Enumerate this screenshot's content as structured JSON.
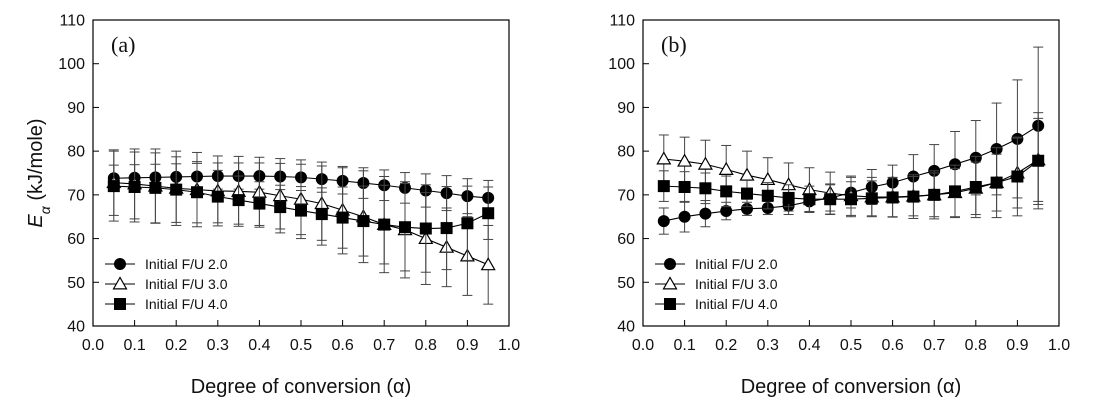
{
  "shared": {
    "ylabel_symbol": "E",
    "ylabel_sub": "α",
    "ylabel_unit": " (kJ/mole)"
  },
  "chart_data": [
    {
      "type": "line",
      "panel_label": "(a)",
      "xlabel": "Degree of conversion (α)",
      "ylabel": "Eα (kJ/mole)",
      "xlim": [
        0.0,
        1.0
      ],
      "ylim": [
        40,
        110
      ],
      "xticks": [
        "0.0",
        "0.1",
        "0.2",
        "0.3",
        "0.4",
        "0.5",
        "0.6",
        "0.7",
        "0.8",
        "0.9",
        "1.0"
      ],
      "yticks": [
        "40",
        "50",
        "60",
        "70",
        "80",
        "90",
        "100",
        "110"
      ],
      "grid": false,
      "legend_position": "bottom-left",
      "x": [
        0.05,
        0.1,
        0.15,
        0.2,
        0.25,
        0.3,
        0.35,
        0.4,
        0.45,
        0.5,
        0.55,
        0.6,
        0.65,
        0.7,
        0.75,
        0.8,
        0.85,
        0.9,
        0.95
      ],
      "series": [
        {
          "name": "Initial F/U 2.0",
          "marker": "circle-filled",
          "values": [
            73.8,
            73.9,
            74.0,
            74.1,
            74.2,
            74.3,
            74.3,
            74.3,
            74.2,
            74.0,
            73.6,
            73.2,
            72.7,
            72.2,
            71.6,
            71.0,
            70.4,
            69.7,
            69.3
          ],
          "errors": [
            3.0,
            3.0,
            3.0,
            3.0,
            3.0,
            3.0,
            3.0,
            3.0,
            3.0,
            3.0,
            3.0,
            3.0,
            3.5,
            3.5,
            3.5,
            3.8,
            4.0,
            4.0,
            4.0
          ]
        },
        {
          "name": "Initial F/U 3.0",
          "marker": "triangle-open",
          "values": [
            72.8,
            72.5,
            72.0,
            71.5,
            71.2,
            70.9,
            70.8,
            70.6,
            69.8,
            69.0,
            68.0,
            66.5,
            65.0,
            63.2,
            62.0,
            60.0,
            58.0,
            56.0,
            54.0
          ],
          "errors": [
            7.5,
            8.0,
            8.5,
            8.5,
            8.5,
            8.0,
            8.0,
            8.0,
            8.5,
            9.0,
            9.5,
            10.0,
            10.5,
            11.0,
            11.0,
            10.5,
            9.0,
            9.0,
            9.0
          ]
        },
        {
          "name": "Initial F/U 4.0",
          "marker": "square-filled",
          "values": [
            72.0,
            71.8,
            71.6,
            71.2,
            70.6,
            69.6,
            68.8,
            68.0,
            67.2,
            66.4,
            65.6,
            64.8,
            64.0,
            63.2,
            62.6,
            62.3,
            62.4,
            63.5,
            65.8
          ],
          "errors": [
            8.0,
            8.0,
            8.0,
            7.5,
            7.0,
            6.0,
            5.5,
            5.0,
            5.0,
            5.5,
            6.0,
            7.0,
            8.0,
            9.0,
            10.0,
            10.0,
            9.5,
            8.5,
            6.0
          ]
        }
      ]
    },
    {
      "type": "line",
      "panel_label": "(b)",
      "xlabel": "Degree of conversion (α)",
      "ylabel": "Eα (kJ/mole)",
      "xlim": [
        0.0,
        1.0
      ],
      "ylim": [
        40,
        110
      ],
      "xticks": [
        "0.0",
        "0.1",
        "0.2",
        "0.3",
        "0.4",
        "0.5",
        "0.6",
        "0.7",
        "0.8",
        "0.9",
        "1.0"
      ],
      "yticks": [
        "40",
        "50",
        "60",
        "70",
        "80",
        "90",
        "100",
        "110"
      ],
      "grid": false,
      "legend_position": "bottom-left",
      "x": [
        0.05,
        0.1,
        0.15,
        0.2,
        0.25,
        0.3,
        0.35,
        0.4,
        0.45,
        0.5,
        0.55,
        0.6,
        0.65,
        0.7,
        0.75,
        0.8,
        0.85,
        0.9,
        0.95
      ],
      "series": [
        {
          "name": "Initial F/U 2.0",
          "marker": "circle-filled",
          "values": [
            64.0,
            65.0,
            65.7,
            66.3,
            66.8,
            67.0,
            67.5,
            68.5,
            69.3,
            70.5,
            71.8,
            72.8,
            74.2,
            75.5,
            77.0,
            78.5,
            80.5,
            82.8,
            85.8
          ],
          "errors": [
            3.0,
            3.5,
            3.0,
            2.0,
            1.5,
            1.5,
            2.0,
            2.5,
            3.0,
            3.5,
            4.0,
            4.0,
            5.0,
            6.0,
            7.5,
            8.5,
            10.5,
            13.5,
            18.0
          ]
        },
        {
          "name": "Initial F/U 3.0",
          "marker": "triangle-open",
          "values": [
            78.2,
            77.7,
            77.0,
            75.8,
            74.5,
            73.5,
            72.3,
            71.2,
            70.4,
            69.8,
            69.5,
            69.5,
            69.7,
            70.0,
            70.5,
            71.5,
            72.8,
            75.0,
            78.0
          ],
          "errors": [
            5.5,
            5.5,
            5.5,
            5.5,
            5.5,
            5.0,
            5.0,
            5.0,
            4.8,
            4.5,
            4.5,
            4.5,
            4.5,
            5.0,
            5.5,
            6.0,
            6.5,
            8.0,
            9.5
          ]
        },
        {
          "name": "Initial F/U 4.0",
          "marker": "square-filled",
          "values": [
            72.0,
            71.8,
            71.5,
            70.8,
            70.3,
            69.8,
            69.3,
            69.0,
            69.0,
            69.0,
            69.2,
            69.4,
            69.6,
            70.0,
            70.8,
            71.8,
            72.8,
            74.2,
            77.8
          ],
          "errors": [
            3.5,
            3.5,
            3.5,
            3.5,
            3.0,
            3.0,
            3.0,
            3.0,
            3.5,
            4.0,
            4.0,
            4.5,
            5.0,
            5.5,
            6.0,
            7.0,
            8.0,
            9.0,
            11.0
          ]
        }
      ]
    }
  ]
}
